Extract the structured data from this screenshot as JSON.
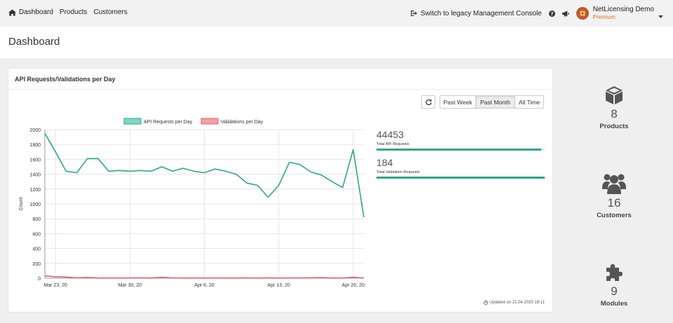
{
  "nav": {
    "dashboard": "Dashboard",
    "products": "Products",
    "customers": "Customers",
    "legacy": "Switch to legacy Management Console",
    "account_name": "NetLicensing Demo",
    "account_plan": "Premium"
  },
  "page": {
    "title": "Dashboard"
  },
  "panel": {
    "title": "API Requests/Validations per Day",
    "range_buttons": [
      "Past Week",
      "Past Month",
      "All Time"
    ],
    "active_range": "Past Month",
    "updated": "Updated on 21.04.2020 18:11"
  },
  "stats": {
    "api_total": "44453",
    "api_label": "Total API Requests",
    "api_fill": 0.98,
    "validation_total": "184",
    "validation_label": "Total Validation Requests",
    "validation_fill": 1.0
  },
  "chart_data": {
    "type": "line",
    "ylabel": "Count",
    "ylim": [
      0,
      2000
    ],
    "yticks": [
      0,
      200,
      400,
      600,
      800,
      1000,
      1200,
      1400,
      1600,
      1800,
      2000
    ],
    "xtick_labels": [
      "Mar 23, 20",
      "Mar 30, 20",
      "Apr 6, 20",
      "Apr 13, 20",
      "Apr 20, 20"
    ],
    "xtick_indices": [
      1,
      8,
      15,
      22,
      29
    ],
    "legend_position": "top",
    "grid": true,
    "series": [
      {
        "name": "API Requests per Day",
        "color": "#2ea78a",
        "fill": "#7fd6c4",
        "values": [
          1950,
          1700,
          1440,
          1420,
          1610,
          1610,
          1440,
          1450,
          1440,
          1450,
          1440,
          1500,
          1440,
          1480,
          1440,
          1420,
          1470,
          1440,
          1400,
          1280,
          1250,
          1090,
          1250,
          1560,
          1530,
          1430,
          1390,
          1300,
          1220,
          1730,
          820
        ]
      },
      {
        "name": "Validations per Day",
        "color": "#e0616f",
        "fill": "#f3a0a8",
        "values": [
          30,
          20,
          15,
          5,
          10,
          3,
          2,
          2,
          3,
          5,
          2,
          12,
          3,
          2,
          2,
          2,
          2,
          2,
          2,
          3,
          2,
          3,
          2,
          3,
          3,
          5,
          8,
          2,
          2,
          12,
          2
        ]
      }
    ]
  },
  "counters": [
    {
      "value": "8",
      "label": "Products",
      "icon": "box-icon"
    },
    {
      "value": "16",
      "label": "Customers",
      "icon": "users-icon"
    },
    {
      "value": "9",
      "label": "Modules",
      "icon": "puzzle-icon"
    }
  ]
}
